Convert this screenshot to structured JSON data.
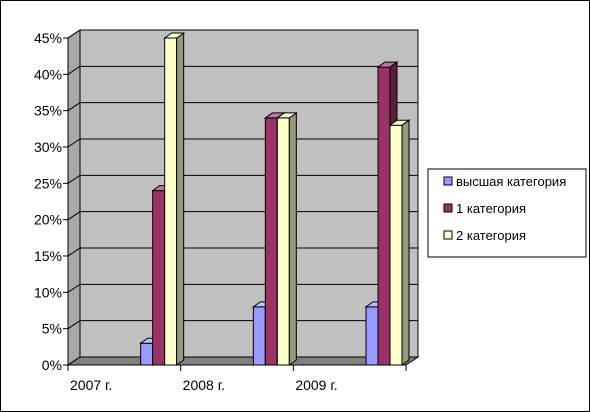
{
  "chart_data": {
    "type": "bar",
    "style": "3d-clustered-column",
    "categories": [
      "2007 г.",
      "2008 г.",
      "2009 г."
    ],
    "series": [
      {
        "name": "высшая категория",
        "values": [
          3,
          8,
          8
        ],
        "color": "#9999ff"
      },
      {
        "name": "1 категория",
        "values": [
          24,
          34,
          41
        ],
        "color": "#993366"
      },
      {
        "name": "2 категория",
        "values": [
          45,
          34,
          33
        ],
        "color": "#ffffcc"
      }
    ],
    "ylim": [
      0,
      45
    ],
    "yticks": [
      0,
      5,
      10,
      15,
      20,
      25,
      30,
      35,
      40,
      45
    ],
    "ytick_labels": [
      "0%",
      "5%",
      "10%",
      "15%",
      "20%",
      "25%",
      "30%",
      "35%",
      "40%",
      "45%"
    ],
    "grid": true,
    "plot_background": "#c0c0c0",
    "legend_position": "right"
  }
}
